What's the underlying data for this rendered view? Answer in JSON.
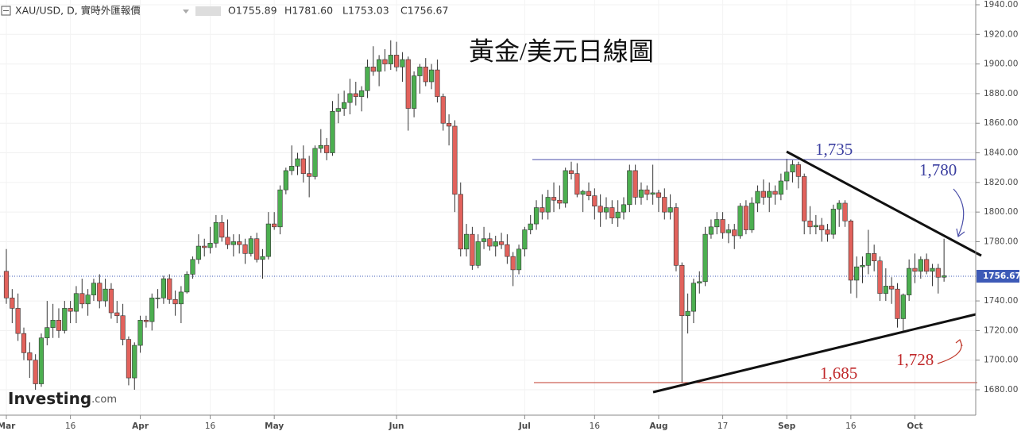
{
  "chart_data": {
    "type": "candlestick",
    "title": "黃金/美元日線圖",
    "symbol": "XAU/USD, D, 實時外匯報價",
    "ohlc_header": [
      "O1755.89",
      "H1781.60",
      "L1753.03",
      "C1756.67"
    ],
    "logo": [
      "Investing",
      ".com"
    ],
    "annotations": [
      "1,735",
      "1,780",
      "1,728",
      "1,685"
    ],
    "up_color": "#4caf50",
    "down_color": "#e2625c",
    "last_price": 1756.67,
    "last_price_color": "#3d5ab7",
    "ylim": [
      1674,
      1940
    ],
    "yticks": [
      {
        "value": 1680,
        "label": "1680.00"
      },
      {
        "value": 1700,
        "label": "1700.00"
      },
      {
        "value": 1720,
        "label": "1720.00"
      },
      {
        "value": 1740,
        "label": "1740.00"
      },
      {
        "value": 1780,
        "label": "1780.00"
      },
      {
        "value": 1800,
        "label": "1800.00"
      },
      {
        "value": 1820,
        "label": "1820.00"
      },
      {
        "value": 1840,
        "label": "1840.00"
      },
      {
        "value": 1860,
        "label": "1860.00"
      },
      {
        "value": 1880,
        "label": "1880.00"
      },
      {
        "value": 1900,
        "label": "1900.00"
      },
      {
        "value": 1920,
        "label": "1920.00"
      },
      {
        "value": 1940,
        "label": "1940.00"
      }
    ],
    "xticks": [
      {
        "value": 0,
        "label": "Mar"
      },
      {
        "value": 11,
        "label": "16"
      },
      {
        "value": 23,
        "label": "Apr"
      },
      {
        "value": 35,
        "label": "16"
      },
      {
        "value": 46,
        "label": "May"
      },
      {
        "value": 67,
        "label": "Jun"
      },
      {
        "value": 89,
        "label": "Jul"
      },
      {
        "value": 101,
        "label": "16"
      },
      {
        "value": 112,
        "label": "Aug"
      },
      {
        "value": 123,
        "label": "17"
      },
      {
        "value": 134,
        "label": "Sep"
      },
      {
        "value": 145,
        "label": "16"
      },
      {
        "value": 156,
        "label": "Oct"
      }
    ],
    "candles": [
      [
        1760,
        1775,
        1738,
        1742
      ],
      [
        1742,
        1748,
        1725,
        1735
      ],
      [
        1735,
        1745,
        1713,
        1718
      ],
      [
        1718,
        1722,
        1700,
        1705
      ],
      [
        1705,
        1712,
        1688,
        1700
      ],
      [
        1700,
        1704,
        1680,
        1684
      ],
      [
        1684,
        1718,
        1682,
        1715
      ],
      [
        1715,
        1740,
        1710,
        1722
      ],
      [
        1722,
        1738,
        1715,
        1727
      ],
      [
        1727,
        1735,
        1715,
        1720
      ],
      [
        1720,
        1740,
        1718,
        1735
      ],
      [
        1735,
        1740,
        1725,
        1733
      ],
      [
        1733,
        1750,
        1725,
        1745
      ],
      [
        1745,
        1755,
        1735,
        1738
      ],
      [
        1738,
        1748,
        1730,
        1744
      ],
      [
        1744,
        1755,
        1740,
        1752
      ],
      [
        1752,
        1758,
        1735,
        1740
      ],
      [
        1740,
        1755,
        1736,
        1748
      ],
      [
        1748,
        1752,
        1728,
        1732
      ],
      [
        1732,
        1740,
        1725,
        1730
      ],
      [
        1730,
        1738,
        1710,
        1714
      ],
      [
        1714,
        1716,
        1683,
        1688
      ],
      [
        1688,
        1712,
        1680,
        1710
      ],
      [
        1710,
        1730,
        1705,
        1727
      ],
      [
        1727,
        1730,
        1722,
        1726
      ],
      [
        1726,
        1745,
        1720,
        1742
      ],
      [
        1742,
        1748,
        1735,
        1742
      ],
      [
        1742,
        1757,
        1738,
        1755
      ],
      [
        1755,
        1758,
        1738,
        1741
      ],
      [
        1741,
        1747,
        1730,
        1738
      ],
      [
        1738,
        1750,
        1725,
        1746
      ],
      [
        1746,
        1760,
        1745,
        1758
      ],
      [
        1758,
        1770,
        1755,
        1768
      ],
      [
        1768,
        1785,
        1765,
        1777
      ],
      [
        1777,
        1782,
        1770,
        1776
      ],
      [
        1776,
        1790,
        1772,
        1779
      ],
      [
        1779,
        1798,
        1776,
        1793
      ],
      [
        1793,
        1798,
        1780,
        1783
      ],
      [
        1783,
        1795,
        1775,
        1778
      ],
      [
        1778,
        1785,
        1770,
        1780
      ],
      [
        1780,
        1785,
        1772,
        1778
      ],
      [
        1778,
        1782,
        1765,
        1772
      ],
      [
        1772,
        1784,
        1770,
        1782
      ],
      [
        1782,
        1786,
        1766,
        1768
      ],
      [
        1768,
        1775,
        1755,
        1770
      ],
      [
        1770,
        1800,
        1768,
        1792
      ],
      [
        1792,
        1800,
        1788,
        1790
      ],
      [
        1790,
        1818,
        1785,
        1815
      ],
      [
        1815,
        1830,
        1812,
        1828
      ],
      [
        1828,
        1845,
        1825,
        1831
      ],
      [
        1831,
        1840,
        1825,
        1836
      ],
      [
        1836,
        1845,
        1820,
        1826
      ],
      [
        1826,
        1838,
        1810,
        1824
      ],
      [
        1824,
        1845,
        1822,
        1843
      ],
      [
        1843,
        1856,
        1840,
        1845
      ],
      [
        1845,
        1850,
        1835,
        1840
      ],
      [
        1840,
        1875,
        1838,
        1868
      ],
      [
        1868,
        1880,
        1860,
        1870
      ],
      [
        1870,
        1882,
        1865,
        1874
      ],
      [
        1874,
        1890,
        1866,
        1880
      ],
      [
        1880,
        1888,
        1872,
        1878
      ],
      [
        1878,
        1885,
        1868,
        1882
      ],
      [
        1882,
        1903,
        1877,
        1898
      ],
      [
        1898,
        1912,
        1892,
        1895
      ],
      [
        1895,
        1906,
        1885,
        1903
      ],
      [
        1903,
        1910,
        1895,
        1900
      ],
      [
        1900,
        1916,
        1896,
        1906
      ],
      [
        1906,
        1915,
        1895,
        1898
      ],
      [
        1898,
        1908,
        1888,
        1903
      ],
      [
        1903,
        1905,
        1855,
        1870
      ],
      [
        1870,
        1895,
        1864,
        1892
      ],
      [
        1892,
        1900,
        1880,
        1898
      ],
      [
        1898,
        1904,
        1885,
        1888
      ],
      [
        1888,
        1900,
        1883,
        1896
      ],
      [
        1896,
        1903,
        1874,
        1878
      ],
      [
        1878,
        1880,
        1855,
        1860
      ],
      [
        1860,
        1866,
        1845,
        1858
      ],
      [
        1858,
        1862,
        1800,
        1812
      ],
      [
        1812,
        1820,
        1770,
        1775
      ],
      [
        1775,
        1792,
        1770,
        1785
      ],
      [
        1785,
        1790,
        1761,
        1764
      ],
      [
        1764,
        1785,
        1762,
        1780
      ],
      [
        1780,
        1790,
        1775,
        1782
      ],
      [
        1782,
        1786,
        1774,
        1777
      ],
      [
        1777,
        1784,
        1770,
        1780
      ],
      [
        1780,
        1786,
        1775,
        1778
      ],
      [
        1778,
        1785,
        1765,
        1770
      ],
      [
        1770,
        1773,
        1750,
        1761
      ],
      [
        1761,
        1778,
        1758,
        1775
      ],
      [
        1775,
        1790,
        1770,
        1788
      ],
      [
        1788,
        1798,
        1785,
        1792
      ],
      [
        1792,
        1808,
        1788,
        1803
      ],
      [
        1803,
        1812,
        1795,
        1800
      ],
      [
        1800,
        1815,
        1795,
        1810
      ],
      [
        1810,
        1820,
        1800,
        1808
      ],
      [
        1808,
        1818,
        1802,
        1806
      ],
      [
        1806,
        1830,
        1803,
        1828
      ],
      [
        1828,
        1834,
        1822,
        1826
      ],
      [
        1826,
        1833,
        1810,
        1812
      ],
      [
        1812,
        1815,
        1800,
        1814
      ],
      [
        1814,
        1820,
        1808,
        1811
      ],
      [
        1811,
        1816,
        1795,
        1804
      ],
      [
        1804,
        1812,
        1790,
        1800
      ],
      [
        1800,
        1810,
        1795,
        1803
      ],
      [
        1803,
        1808,
        1792,
        1796
      ],
      [
        1796,
        1808,
        1790,
        1800
      ],
      [
        1800,
        1810,
        1795,
        1805
      ],
      [
        1805,
        1832,
        1800,
        1828
      ],
      [
        1828,
        1832,
        1805,
        1810
      ],
      [
        1810,
        1820,
        1805,
        1815
      ],
      [
        1815,
        1818,
        1808,
        1812
      ],
      [
        1812,
        1832,
        1805,
        1813
      ],
      [
        1813,
        1815,
        1800,
        1810
      ],
      [
        1810,
        1816,
        1795,
        1800
      ],
      [
        1800,
        1812,
        1795,
        1803
      ],
      [
        1803,
        1806,
        1760,
        1764
      ],
      [
        1764,
        1766,
        1685,
        1730
      ],
      [
        1730,
        1745,
        1718,
        1733
      ],
      [
        1733,
        1755,
        1725,
        1752
      ],
      [
        1752,
        1760,
        1745,
        1753
      ],
      [
        1753,
        1790,
        1750,
        1785
      ],
      [
        1785,
        1795,
        1782,
        1790
      ],
      [
        1790,
        1800,
        1785,
        1795
      ],
      [
        1795,
        1800,
        1782,
        1786
      ],
      [
        1786,
        1792,
        1779,
        1788
      ],
      [
        1788,
        1792,
        1775,
        1784
      ],
      [
        1784,
        1806,
        1782,
        1804
      ],
      [
        1804,
        1808,
        1785,
        1788
      ],
      [
        1788,
        1810,
        1786,
        1806
      ],
      [
        1806,
        1818,
        1800,
        1814
      ],
      [
        1814,
        1822,
        1805,
        1810
      ],
      [
        1810,
        1820,
        1800,
        1814
      ],
      [
        1814,
        1818,
        1805,
        1812
      ],
      [
        1812,
        1826,
        1808,
        1821
      ],
      [
        1821,
        1836,
        1815,
        1827
      ],
      [
        1827,
        1835,
        1820,
        1832
      ],
      [
        1832,
        1834,
        1816,
        1824
      ],
      [
        1824,
        1826,
        1785,
        1794
      ],
      [
        1794,
        1804,
        1785,
        1790
      ],
      [
        1790,
        1798,
        1785,
        1791
      ],
      [
        1791,
        1796,
        1780,
        1788
      ],
      [
        1788,
        1792,
        1780,
        1785
      ],
      [
        1785,
        1805,
        1782,
        1802
      ],
      [
        1802,
        1808,
        1790,
        1806
      ],
      [
        1806,
        1808,
        1790,
        1794
      ],
      [
        1794,
        1795,
        1745,
        1754
      ],
      [
        1754,
        1770,
        1742,
        1763
      ],
      [
        1763,
        1770,
        1752,
        1764
      ],
      [
        1764,
        1788,
        1758,
        1772
      ],
      [
        1772,
        1778,
        1760,
        1767
      ],
      [
        1767,
        1770,
        1740,
        1745
      ],
      [
        1745,
        1762,
        1740,
        1750
      ],
      [
        1750,
        1756,
        1738,
        1748
      ],
      [
        1748,
        1752,
        1722,
        1728
      ],
      [
        1728,
        1745,
        1720,
        1744
      ],
      [
        1744,
        1768,
        1740,
        1762
      ],
      [
        1762,
        1772,
        1752,
        1760
      ],
      [
        1760,
        1770,
        1755,
        1768
      ],
      [
        1768,
        1772,
        1758,
        1760
      ],
      [
        1760,
        1765,
        1750,
        1762
      ],
      [
        1762,
        1765,
        1745,
        1756
      ],
      [
        1756,
        1782,
        1753,
        1757
      ]
    ]
  }
}
